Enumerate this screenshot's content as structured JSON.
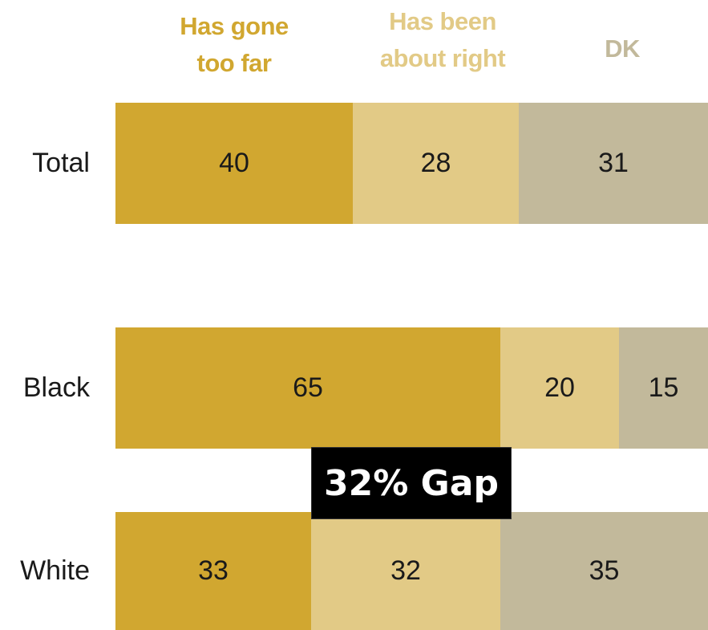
{
  "chart_data": {
    "type": "bar",
    "orientation": "horizontal",
    "stacked": true,
    "categories": [
      "Total",
      "Black",
      "White"
    ],
    "series": [
      {
        "name": "Has gone too far",
        "values": [
          40,
          65,
          33
        ],
        "color": "#D1A730"
      },
      {
        "name": "Has been about right",
        "values": [
          28,
          20,
          32
        ],
        "color": "#E2CA86"
      },
      {
        "name": "DK",
        "values": [
          31,
          15,
          35
        ],
        "color": "#C2B99B"
      }
    ],
    "legend": {
      "placement": "top",
      "labels": [
        "Has gone\ntoo far",
        "Has been\nabout right",
        "DK"
      ],
      "colors": [
        "#D1A730",
        "#E2CA86",
        "#C2B99B"
      ]
    },
    "annotation": "32% Gap",
    "xlim": [
      0,
      100
    ],
    "grid": false
  }
}
